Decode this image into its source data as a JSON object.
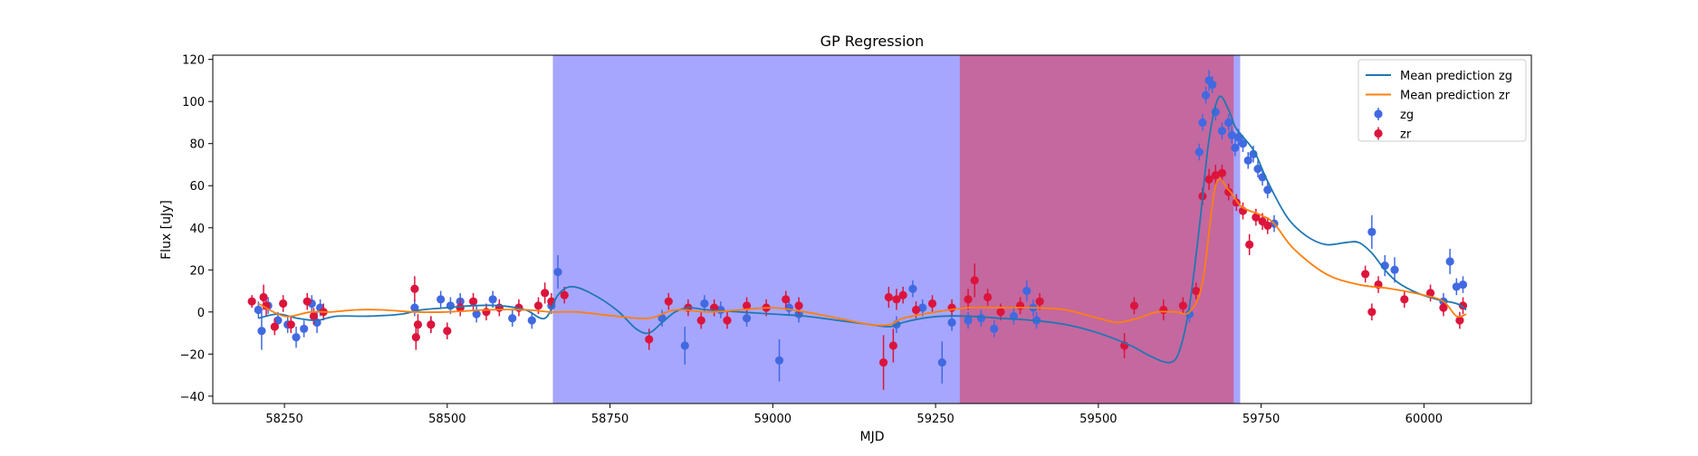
{
  "chart_data": {
    "type": "scatter",
    "title": "GP Regression",
    "xlabel": "MJD",
    "ylabel": "Flux [uJy]",
    "xlim": [
      58140,
      60165
    ],
    "ylim": [
      -43.5,
      122
    ],
    "xticks": [
      58250,
      58500,
      58750,
      59000,
      59250,
      59500,
      59750,
      60000
    ],
    "yticks": [
      -40,
      -20,
      0,
      20,
      40,
      60,
      80,
      100,
      120
    ],
    "grid": false,
    "legend_position": "top-right",
    "colors": {
      "zg_line": "#1f77b4",
      "zr_line": "#ff7f0e",
      "zg_points": "#4169e1",
      "zr_points": "#dc143c",
      "span_blue": "#a6a6ff",
      "span_magenta": "#c4689f"
    },
    "shaded_regions": [
      {
        "x0": 58663,
        "x1": 59717,
        "color": "#a6a6ff"
      },
      {
        "x0": 59288,
        "x1": 59707,
        "color": "#c4689f"
      }
    ],
    "series": [
      {
        "name": "Mean prediction zg",
        "kind": "line",
        "color": "#1f77b4",
        "x": [
          58210,
          58240,
          58270,
          58300,
          58330,
          58380,
          58430,
          58460,
          58500,
          58540,
          58580,
          58620,
          58650,
          58670,
          58690,
          58720,
          58760,
          58790,
          58810,
          58830,
          58850,
          58870,
          58900,
          58950,
          59000,
          59050,
          59100,
          59150,
          59180,
          59200,
          59230,
          59260,
          59300,
          59350,
          59400,
          59450,
          59500,
          59550,
          59580,
          59610,
          59625,
          59640,
          59655,
          59670,
          59685,
          59700,
          59710,
          59720,
          59740,
          59760,
          59790,
          59820,
          59850,
          59880,
          59900,
          59920,
          59940,
          59960,
          59990,
          60020,
          60050,
          60065
        ],
        "y": [
          -3,
          -1,
          -3,
          -4,
          -2,
          -2,
          -1,
          1,
          2,
          3,
          3,
          1,
          -3,
          8,
          12,
          9,
          1,
          -8,
          -10,
          -5,
          0,
          2,
          1,
          0,
          -1,
          -2,
          -4,
          -6,
          -7,
          -5,
          -3,
          -2,
          -2,
          -3,
          -4,
          -6,
          -10,
          -16,
          -21,
          -24,
          -18,
          3,
          40,
          82,
          102,
          96,
          88,
          84,
          76,
          62,
          45,
          36,
          32,
          33,
          33,
          28,
          20,
          14,
          9,
          6,
          4,
          1
        ]
      },
      {
        "name": "Mean prediction zr",
        "kind": "line",
        "color": "#ff7f0e",
        "x": [
          58210,
          58250,
          58290,
          58320,
          58360,
          58400,
          58450,
          58500,
          58560,
          58620,
          58660,
          58700,
          58760,
          58810,
          58850,
          58900,
          58950,
          59000,
          59050,
          59100,
          59150,
          59180,
          59200,
          59250,
          59300,
          59350,
          59400,
          59450,
          59500,
          59530,
          59560,
          59590,
          59620,
          59640,
          59660,
          59680,
          59700,
          59720,
          59750,
          59770,
          59800,
          59850,
          59900,
          59950,
          60000,
          60030,
          60050,
          60065
        ],
        "y": [
          4,
          -2,
          0,
          0,
          1,
          1,
          0,
          0,
          1,
          1,
          0,
          0,
          -2,
          -3,
          1,
          0,
          1,
          2,
          0,
          -3,
          -6,
          -6,
          -3,
          0,
          2,
          2,
          2,
          1,
          -3,
          -5,
          -3,
          0,
          0,
          0,
          14,
          60,
          58,
          50,
          46,
          42,
          30,
          18,
          13,
          11,
          8,
          5,
          -2,
          -1
        ]
      },
      {
        "name": "zg",
        "kind": "points",
        "color": "#4169e1",
        "x": [
          58210,
          58215,
          58225,
          58240,
          58255,
          58268,
          58280,
          58292,
          58300,
          58305,
          58450,
          58475,
          58490,
          58505,
          58520,
          58545,
          58570,
          58600,
          58630,
          58660,
          58670,
          58830,
          58865,
          58895,
          58920,
          58960,
          59010,
          59025,
          59040,
          59190,
          59215,
          59230,
          59260,
          59275,
          59300,
          59320,
          59340,
          59370,
          59390,
          59400,
          59405,
          59640,
          59655,
          59660,
          59665,
          59670,
          59675,
          59680,
          59690,
          59700,
          59705,
          59710,
          59715,
          59722,
          59730,
          59738,
          59745,
          59752,
          59760,
          59770,
          59920,
          59940,
          59955,
          60030,
          60040,
          60050,
          60060
        ],
        "y": [
          1,
          -9,
          3,
          -4,
          -6,
          -12,
          -8,
          4,
          -5,
          2,
          2,
          -6,
          6,
          3,
          5,
          -1,
          6,
          -3,
          -4,
          3,
          19,
          -3,
          -16,
          4,
          1,
          -3,
          -23,
          2,
          -1,
          -6,
          11,
          2,
          -24,
          -5,
          -4,
          -3,
          -8,
          -2,
          10,
          2,
          -4,
          -1,
          76,
          90,
          103,
          110,
          108,
          95,
          86,
          90,
          84,
          78,
          83,
          80,
          72,
          75,
          68,
          64,
          58,
          42,
          38,
          22,
          20,
          5,
          24,
          12,
          13
        ],
        "yerr": [
          4,
          9,
          4,
          4,
          4,
          5,
          4,
          4,
          5,
          4,
          4,
          4,
          4,
          4,
          4,
          4,
          4,
          4,
          4,
          4,
          8,
          4,
          9,
          4,
          4,
          4,
          10,
          4,
          4,
          4,
          4,
          4,
          10,
          4,
          4,
          4,
          4,
          4,
          5,
          4,
          4,
          4,
          4,
          4,
          4,
          5,
          4,
          4,
          4,
          4,
          4,
          4,
          4,
          4,
          4,
          4,
          4,
          4,
          4,
          4,
          8,
          5,
          6,
          4,
          6,
          4,
          4
        ]
      },
      {
        "name": "zr",
        "kind": "points",
        "color": "#dc143c",
        "x": [
          58200,
          58218,
          58222,
          58235,
          58248,
          58260,
          58285,
          58295,
          58310,
          58450,
          58452,
          58455,
          58475,
          58500,
          58520,
          58540,
          58560,
          58580,
          58610,
          58640,
          58650,
          58660,
          58680,
          58810,
          58840,
          58870,
          58890,
          58910,
          58930,
          58960,
          58990,
          59020,
          59040,
          59170,
          59178,
          59185,
          59190,
          59200,
          59220,
          59245,
          59275,
          59300,
          59310,
          59330,
          59350,
          59380,
          59410,
          59540,
          59555,
          59600,
          59630,
          59650,
          59660,
          59670,
          59680,
          59690,
          59700,
          59712,
          59722,
          59732,
          59742,
          59752,
          59760,
          59910,
          59920,
          59930,
          59970,
          60010,
          60030,
          60055,
          60060
        ],
        "y": [
          5,
          7,
          3,
          -7,
          4,
          -6,
          5,
          -2,
          0,
          11,
          -12,
          -6,
          -6,
          -9,
          2,
          5,
          0,
          2,
          2,
          3,
          9,
          5,
          8,
          -13,
          5,
          2,
          -4,
          2,
          -4,
          3,
          2,
          6,
          3,
          -24,
          7,
          -16,
          6,
          8,
          1,
          4,
          2,
          6,
          15,
          7,
          0,
          3,
          5,
          -16,
          3,
          1,
          3,
          10,
          55,
          63,
          65,
          66,
          57,
          52,
          48,
          32,
          45,
          43,
          41,
          18,
          0,
          13,
          6,
          9,
          2,
          -4,
          3
        ],
        "yerr": [
          3,
          6,
          5,
          4,
          4,
          4,
          4,
          4,
          4,
          6,
          6,
          5,
          4,
          4,
          4,
          4,
          4,
          4,
          4,
          4,
          5,
          4,
          4,
          5,
          4,
          4,
          4,
          4,
          4,
          4,
          4,
          4,
          4,
          13,
          5,
          8,
          5,
          4,
          4,
          4,
          4,
          5,
          8,
          4,
          4,
          4,
          4,
          6,
          4,
          5,
          4,
          4,
          4,
          5,
          5,
          4,
          4,
          4,
          4,
          5,
          4,
          4,
          4,
          4,
          4,
          4,
          4,
          4,
          4,
          4,
          4
        ]
      }
    ]
  }
}
